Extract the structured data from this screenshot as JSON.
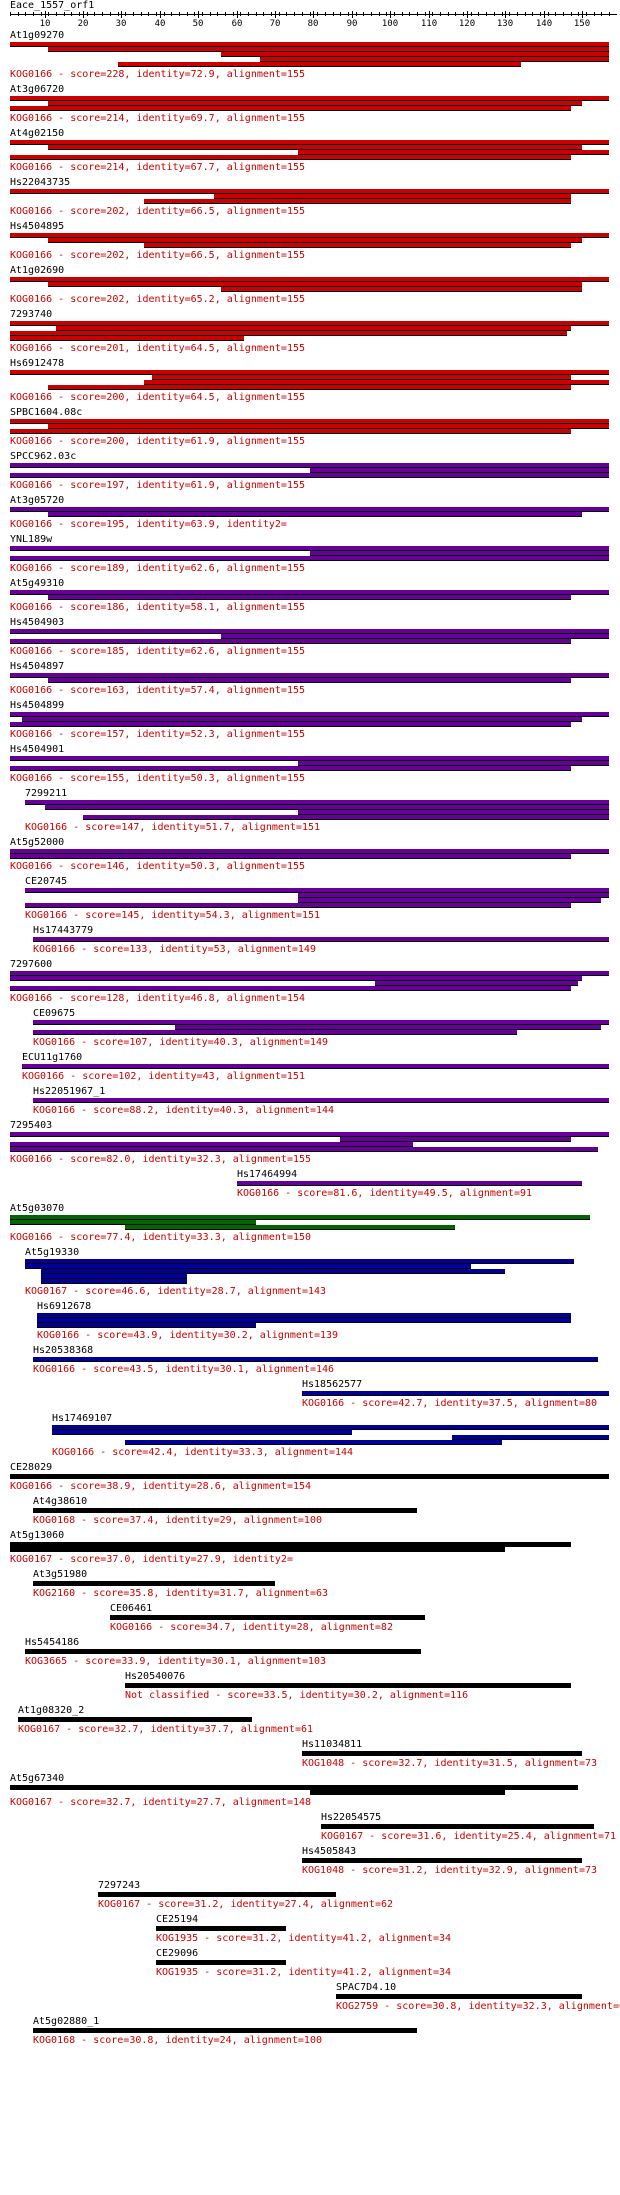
{
  "query": "Eace_1557_orf1",
  "ruler": {
    "ticks": [
      10,
      20,
      30,
      40,
      50,
      60,
      70,
      80,
      90,
      100,
      110,
      120,
      130,
      140,
      150
    ]
  },
  "colors": {
    "red": "#cc0000",
    "purple": "#660099",
    "green": "#006600",
    "blue": "#000099",
    "black": "#000000"
  },
  "hits": [
    {
      "name": "At1g09270",
      "note": "KOG0166 - score=228, identity=72.9, alignment=155",
      "color": "red",
      "bars": [
        [
          1,
          157
        ],
        [
          11,
          157
        ],
        [
          56,
          157
        ],
        [
          66,
          157
        ],
        [
          29,
          134
        ]
      ]
    },
    {
      "name": "At3g06720",
      "note": "KOG0166 - score=214, identity=69.7, alignment=155",
      "color": "red",
      "bars": [
        [
          1,
          157
        ],
        [
          11,
          150
        ],
        [
          1,
          147
        ]
      ]
    },
    {
      "name": "At4g02150",
      "note": "KOG0166 - score=214, identity=67.7, alignment=155",
      "color": "red",
      "bars": [
        [
          1,
          157
        ],
        [
          11,
          150
        ],
        [
          76,
          157
        ],
        [
          1,
          147
        ]
      ]
    },
    {
      "name": "Hs22043735",
      "note": "KOG0166 - score=202, identity=66.5, alignment=155",
      "color": "red",
      "bars": [
        [
          1,
          157
        ],
        [
          54,
          147
        ],
        [
          36,
          147
        ]
      ]
    },
    {
      "name": "Hs4504895",
      "note": "KOG0166 - score=202, identity=66.5, alignment=155",
      "color": "red",
      "bars": [
        [
          1,
          157
        ],
        [
          11,
          150
        ],
        [
          36,
          147
        ]
      ]
    },
    {
      "name": "At1g02690",
      "note": "KOG0166 - score=202, identity=65.2, alignment=155",
      "color": "red",
      "bars": [
        [
          1,
          157
        ],
        [
          11,
          150
        ],
        [
          56,
          150
        ]
      ]
    },
    {
      "name": "7293740",
      "note": "KOG0166 - score=201, identity=64.5, alignment=155",
      "color": "red",
      "bars": [
        [
          1,
          157
        ],
        [
          13,
          147
        ],
        [
          1,
          146
        ],
        [
          1,
          62
        ]
      ]
    },
    {
      "name": "Hs6912478",
      "note": "KOG0166 - score=200, identity=64.5, alignment=155",
      "color": "red",
      "bars": [
        [
          1,
          157
        ],
        [
          38,
          147
        ],
        [
          36,
          157
        ],
        [
          11,
          147
        ]
      ]
    },
    {
      "name": "SPBC1604.08c",
      "note": "KOG0166 - score=200, identity=61.9, alignment=155",
      "color": "red",
      "bars": [
        [
          1,
          157
        ],
        [
          11,
          157
        ],
        [
          1,
          147
        ]
      ]
    },
    {
      "name": "SPCC962.03c",
      "note": "KOG0166 - score=197, identity=61.9, alignment=155",
      "color": "purple",
      "bars": [
        [
          1,
          157
        ],
        [
          79,
          157
        ],
        [
          1,
          157
        ]
      ]
    },
    {
      "name": "At3g05720",
      "note": "KOG0166 - score=195, identity=63.9, identity2=",
      "color": "purple",
      "bars": [
        [
          1,
          157
        ],
        [
          11,
          150
        ]
      ]
    },
    {
      "name": "YNL189w",
      "note": "KOG0166 - score=189, identity=62.6, alignment=155",
      "color": "purple",
      "bars": [
        [
          1,
          157
        ],
        [
          79,
          157
        ],
        [
          1,
          157
        ]
      ]
    },
    {
      "name": "At5g49310",
      "note": "KOG0166 - score=186, identity=58.1, alignment=155",
      "color": "purple",
      "bars": [
        [
          1,
          157
        ],
        [
          11,
          147
        ]
      ]
    },
    {
      "name": "Hs4504903",
      "note": "KOG0166 - score=185, identity=62.6, alignment=155",
      "color": "purple",
      "bars": [
        [
          1,
          157
        ],
        [
          56,
          157
        ],
        [
          1,
          147
        ]
      ]
    },
    {
      "name": "Hs4504897",
      "note": "KOG0166 - score=163, identity=57.4, alignment=155",
      "color": "purple",
      "bars": [
        [
          1,
          157
        ],
        [
          11,
          147
        ]
      ]
    },
    {
      "name": "Hs4504899",
      "note": "KOG0166 - score=157, identity=52.3, alignment=155",
      "color": "purple",
      "bars": [
        [
          1,
          157
        ],
        [
          4,
          150
        ],
        [
          1,
          147
        ]
      ]
    },
    {
      "name": "Hs4504901",
      "note": "KOG0166 - score=155, identity=50.3, alignment=155",
      "color": "purple",
      "bars": [
        [
          1,
          157
        ],
        [
          76,
          157
        ],
        [
          1,
          147
        ]
      ]
    },
    {
      "name": "7299211",
      "note": "KOG0166 - score=147, identity=51.7, alignment=151",
      "color": "purple",
      "bars": [
        [
          5,
          157
        ],
        [
          10,
          157
        ],
        [
          76,
          157
        ],
        [
          20,
          157
        ]
      ]
    },
    {
      "name": "At5g52000",
      "note": "KOG0166 - score=146, identity=50.3, alignment=155",
      "color": "purple",
      "bars": [
        [
          1,
          157
        ],
        [
          1,
          147
        ]
      ]
    },
    {
      "name": "CE20745",
      "note": "KOG0166 - score=145, identity=54.3, alignment=151",
      "color": "purple",
      "bars": [
        [
          5,
          157
        ],
        [
          76,
          157
        ],
        [
          76,
          155
        ],
        [
          5,
          147
        ]
      ]
    },
    {
      "name": "Hs17443779",
      "note": "KOG0166 - score=133, identity=53, alignment=149",
      "color": "purple",
      "bars": [
        [
          7,
          157
        ]
      ]
    },
    {
      "name": "7297600",
      "note": "KOG0166 - score=128, identity=46.8, alignment=154",
      "color": "purple",
      "bars": [
        [
          1,
          157
        ],
        [
          1,
          150
        ],
        [
          96,
          149
        ],
        [
          1,
          147
        ]
      ]
    },
    {
      "name": "CE09675",
      "note": "KOG0166 - score=107, identity=40.3, alignment=149",
      "color": "purple",
      "bars": [
        [
          7,
          157
        ],
        [
          44,
          155
        ],
        [
          7,
          133
        ]
      ]
    },
    {
      "name": "ECU11g1760",
      "note": "KOG0166 - score=102, identity=43, alignment=151",
      "color": "purple",
      "bars": [
        [
          4,
          157
        ]
      ]
    },
    {
      "name": "Hs22051967_1",
      "note": "KOG0166 - score=88.2, identity=40.3, alignment=144",
      "color": "purple",
      "bars": [
        [
          7,
          157
        ]
      ]
    },
    {
      "name": "7295403",
      "note": "KOG0166 - score=82.0, identity=32.3, alignment=155",
      "color": "purple",
      "bars": [
        [
          1,
          157
        ],
        [
          87,
          147
        ],
        [
          1,
          106
        ],
        [
          1,
          154
        ]
      ]
    },
    {
      "name": "Hs17464994",
      "note": "KOG0166 - score=81.6, identity=49.5, alignment=91",
      "color": "purple",
      "bars": [
        [
          60,
          150
        ]
      ],
      "indent": 60
    },
    {
      "name": "At5g03070",
      "note": "KOG0166 - score=77.4, identity=33.3, alignment=150",
      "color": "green",
      "bars": [
        [
          1,
          152
        ],
        [
          1,
          65
        ],
        [
          31,
          117
        ]
      ]
    },
    {
      "name": "At5g19330",
      "note": "KOG0167 - score=46.6, identity=28.7, alignment=143",
      "color": "blue",
      "bars": [
        [
          5,
          148
        ],
        [
          5,
          121
        ],
        [
          9,
          130
        ],
        [
          9,
          47
        ],
        [
          9,
          47
        ]
      ]
    },
    {
      "name": "Hs6912678",
      "note": "KOG0166 - score=43.9, identity=30.2, alignment=139",
      "color": "blue",
      "bars": [
        [
          8,
          147
        ],
        [
          8,
          147
        ],
        [
          8,
          65
        ]
      ]
    },
    {
      "name": "Hs20538368",
      "note": "KOG0166 - score=43.5, identity=30.1, alignment=146",
      "color": "blue",
      "bars": [
        [
          7,
          154
        ]
      ]
    },
    {
      "name": "Hs18562577",
      "note": "KOG0166 - score=42.7, identity=37.5, alignment=80",
      "color": "blue",
      "bars": [
        [
          77,
          157
        ]
      ],
      "indent": 77
    },
    {
      "name": "Hs17469107",
      "note": "KOG0166 - score=42.4, identity=33.3, alignment=144",
      "color": "blue",
      "bars": [
        [
          12,
          157
        ],
        [
          12,
          90
        ],
        [
          116,
          157
        ],
        [
          31,
          129
        ]
      ]
    },
    {
      "name": "CE28029",
      "note": "KOG0166 - score=38.9, identity=28.6, alignment=154",
      "color": "black",
      "bars": [
        [
          1,
          157
        ]
      ]
    },
    {
      "name": "At4g38610",
      "note": "KOG0168 - score=37.4, identity=29, alignment=100",
      "color": "black",
      "bars": [
        [
          7,
          107
        ]
      ]
    },
    {
      "name": "At5g13060",
      "note": "KOG0167 - score=37.0, identity=27.9, identity2=",
      "color": "black",
      "bars": [
        [
          1,
          147
        ],
        [
          1,
          130
        ]
      ]
    },
    {
      "name": "At3g51980",
      "note": "KOG2160 - score=35.8, identity=31.7, alignment=63",
      "color": "black",
      "bars": [
        [
          7,
          70
        ]
      ]
    },
    {
      "name": "CE06461",
      "note": "KOG0166 - score=34.7, identity=28, alignment=82",
      "color": "black",
      "bars": [
        [
          27,
          109
        ]
      ]
    },
    {
      "name": "Hs5454186",
      "note": "KOG3665 - score=33.9, identity=30.1, alignment=103",
      "color": "black",
      "bars": [
        [
          5,
          108
        ]
      ]
    },
    {
      "name": "Hs20540076",
      "note": "Not classified - score=33.5, identity=30.2, alignment=116",
      "color": "black",
      "bars": [
        [
          31,
          147
        ]
      ]
    },
    {
      "name": "At1g08320_2",
      "note": "KOG0167 - score=32.7, identity=37.7, alignment=61",
      "color": "black",
      "bars": [
        [
          3,
          64
        ]
      ]
    },
    {
      "name": "Hs11034811",
      "note": "KOG1048 - score=32.7, identity=31.5, alignment=73",
      "color": "black",
      "bars": [
        [
          77,
          150
        ]
      ]
    },
    {
      "name": "At5g67340",
      "note": "KOG0167 - score=32.7, identity=27.7, alignment=148",
      "color": "black",
      "bars": [
        [
          1,
          149
        ],
        [
          79,
          130
        ]
      ]
    },
    {
      "name": "Hs22054575",
      "note": "KOG0167 - score=31.6, identity=25.4, alignment=71",
      "color": "black",
      "bars": [
        [
          82,
          153
        ]
      ]
    },
    {
      "name": "Hs4505843",
      "note": "KOG1048 - score=31.2, identity=32.9, alignment=73",
      "color": "black",
      "bars": [
        [
          77,
          150
        ]
      ]
    },
    {
      "name": "7297243",
      "note": "KOG0167 - score=31.2, identity=27.4, alignment=62",
      "color": "black",
      "bars": [
        [
          24,
          86
        ]
      ]
    },
    {
      "name": "CE25194",
      "note": "KOG1935 - score=31.2, identity=41.2, alignment=34",
      "color": "black",
      "bars": [
        [
          39,
          73
        ]
      ]
    },
    {
      "name": "CE29096",
      "note": "KOG1935 - score=31.2, identity=41.2, alignment=34",
      "color": "black",
      "bars": [
        [
          39,
          73
        ]
      ]
    },
    {
      "name": "SPAC7D4.10",
      "note": "KOG2759 - score=30.8, identity=32.3, alignment=65",
      "color": "black",
      "bars": [
        [
          86,
          150
        ]
      ]
    },
    {
      "name": "At5g02880_1",
      "note": "KOG0168 - score=30.8, identity=24, alignment=100",
      "color": "black",
      "bars": [
        [
          7,
          107
        ]
      ]
    }
  ]
}
